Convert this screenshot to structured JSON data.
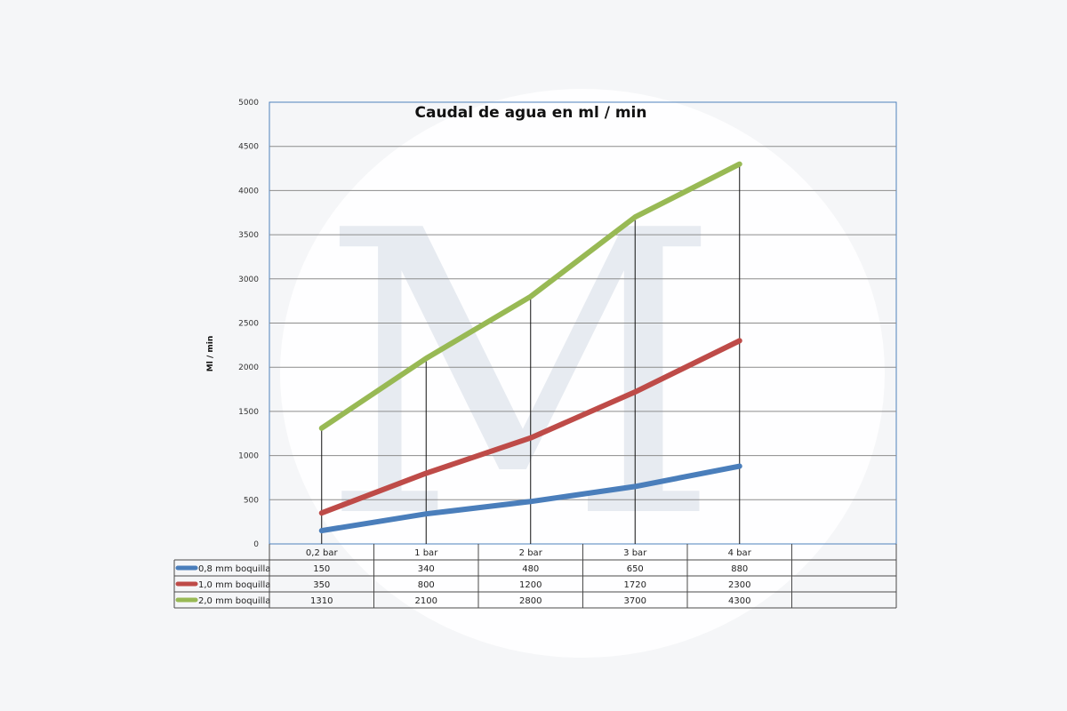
{
  "chart_data": {
    "type": "line",
    "title": "Caudal de agua en ml / min",
    "ylabel": "Ml / min",
    "xlabel": "",
    "ylim": [
      0,
      5000
    ],
    "yticks": [
      0,
      500,
      1000,
      1500,
      2000,
      2500,
      3000,
      3500,
      4000,
      4500,
      5000
    ],
    "grid": true,
    "categories": [
      "0,2 bar",
      "1 bar",
      "2 bar",
      "3 bar",
      "4 bar"
    ],
    "series": [
      {
        "name": "0,8 mm boquilla",
        "color": "#4a7ebb",
        "values": [
          150,
          340,
          480,
          650,
          880
        ]
      },
      {
        "name": "1,0 mm boquilla",
        "color": "#be4b48",
        "values": [
          350,
          800,
          1200,
          1720,
          2300
        ]
      },
      {
        "name": "2,0 mm boquilla",
        "color": "#98b954",
        "values": [
          1310,
          2100,
          2800,
          3700,
          4300
        ]
      }
    ],
    "data_table": true
  },
  "watermark": {
    "letter": "M"
  }
}
